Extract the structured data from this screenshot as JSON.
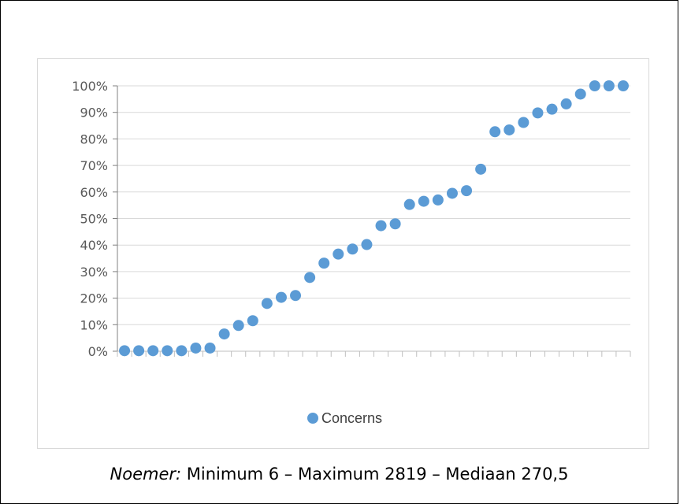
{
  "chart_data": {
    "type": "scatter",
    "y_tick_labels": [
      "0%",
      "10%",
      "20%",
      "30%",
      "40%",
      "50%",
      "60%",
      "70%",
      "80%",
      "90%",
      "100%"
    ],
    "ylim": [
      0,
      100
    ],
    "grid": "horizontal",
    "legend_position": "bottom",
    "series": [
      {
        "name": "Concerns",
        "color": "#5b9bd5",
        "x": [
          1,
          2,
          3,
          4,
          5,
          6,
          7,
          8,
          9,
          10,
          11,
          12,
          13,
          14,
          15,
          16,
          17,
          18,
          19,
          20,
          21,
          22,
          23,
          24,
          25,
          26,
          27,
          28,
          29,
          30,
          31,
          32,
          33,
          34,
          35,
          36
        ],
        "values": [
          0.2,
          0.2,
          0.2,
          0.2,
          0.2,
          1.2,
          1.2,
          6.5,
          9.7,
          11.5,
          18,
          20.3,
          21,
          27.8,
          33.2,
          36.6,
          38.5,
          40.2,
          47.3,
          48,
          55.3,
          56.5,
          57,
          59.5,
          60.5,
          68.6,
          82.7,
          83.4,
          86.2,
          89.8,
          91.2,
          93.2,
          96.9,
          100,
          100,
          100
        ]
      }
    ]
  },
  "caption": {
    "lead": "Noemer:",
    "text": " Minimum 6 – Maximum 2819 – Mediaan 270,5"
  }
}
